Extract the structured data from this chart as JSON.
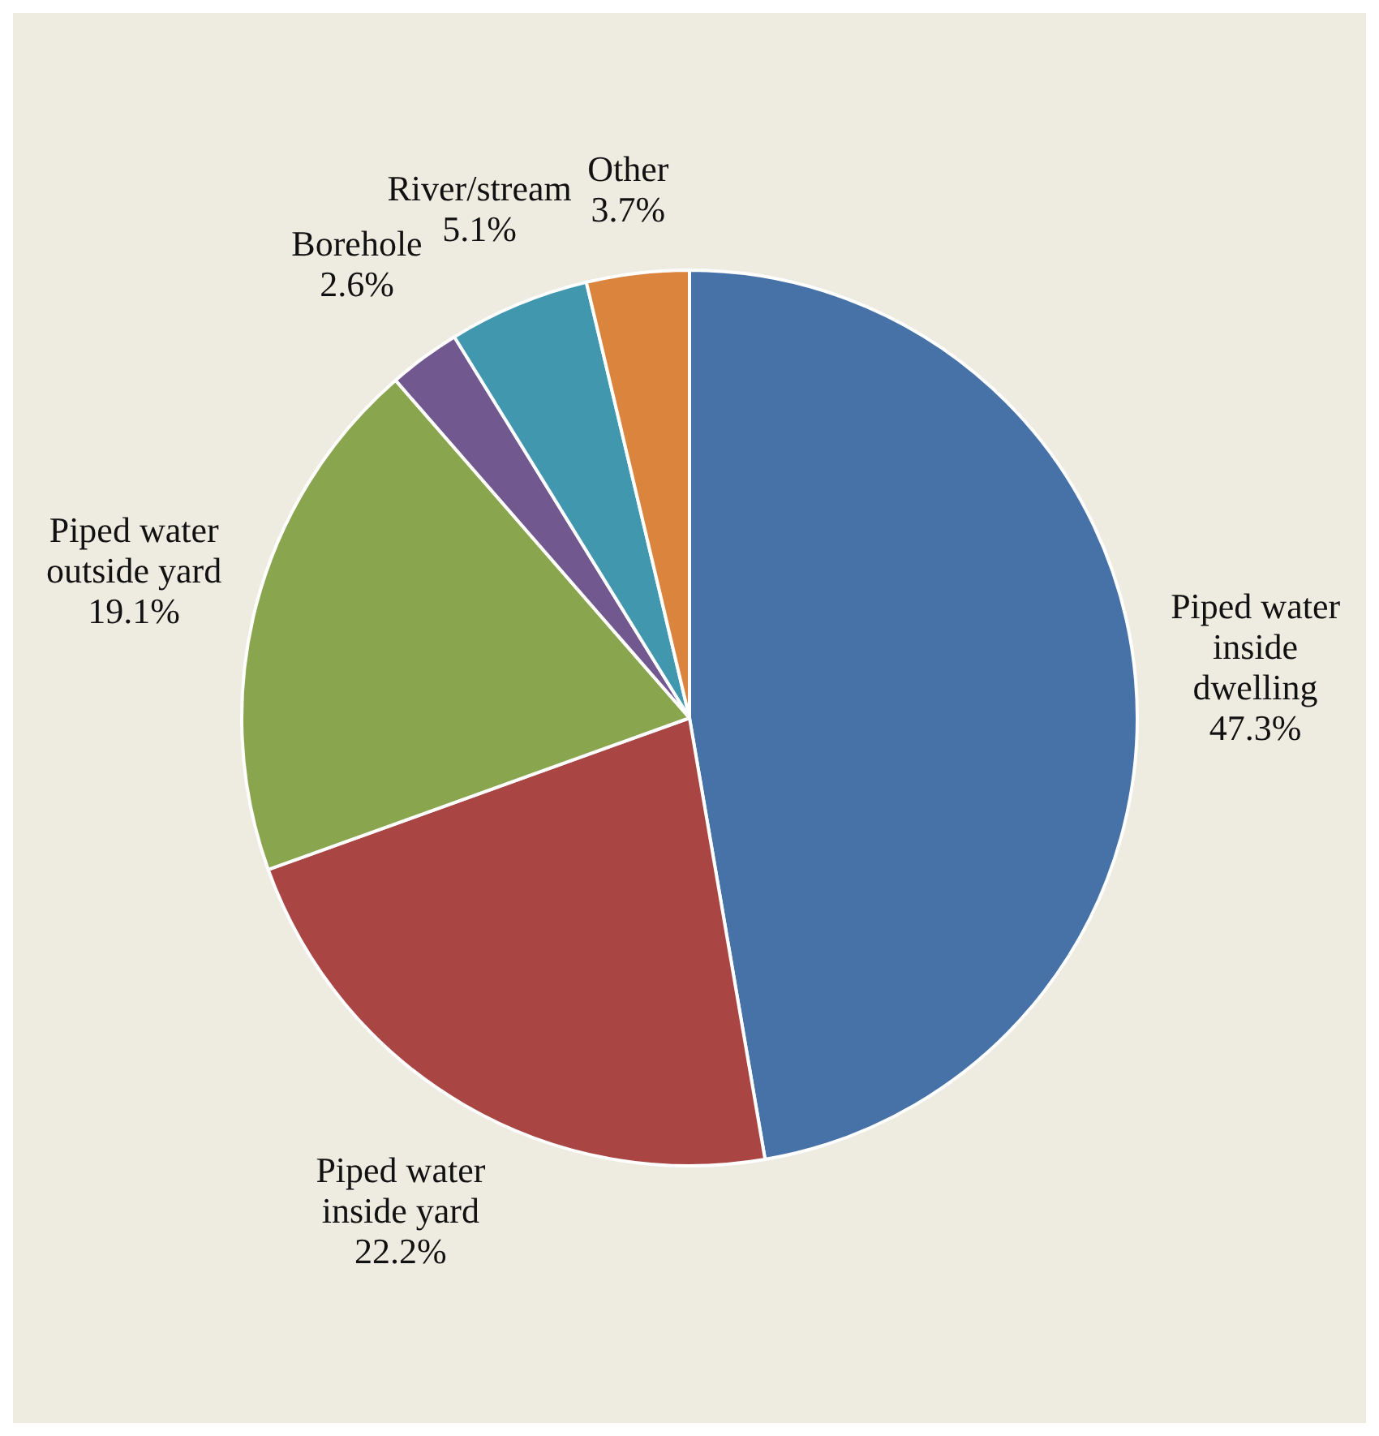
{
  "chart_data": {
    "type": "pie",
    "categories": [
      "Piped water inside dwelling",
      "Piped water inside yard",
      "Piped water outside yard",
      "Borehole",
      "River/stream",
      "Other"
    ],
    "values": [
      47.3,
      22.2,
      19.1,
      2.6,
      5.1,
      3.7
    ],
    "colors": [
      "#4672a8",
      "#a94644",
      "#89a54e",
      "#71588f",
      "#4197ae",
      "#db843d"
    ],
    "value_labels": [
      "47.3%",
      "22.2%",
      "19.1%",
      "2.6%",
      "5.1%",
      "3.7%"
    ],
    "legend": false
  }
}
